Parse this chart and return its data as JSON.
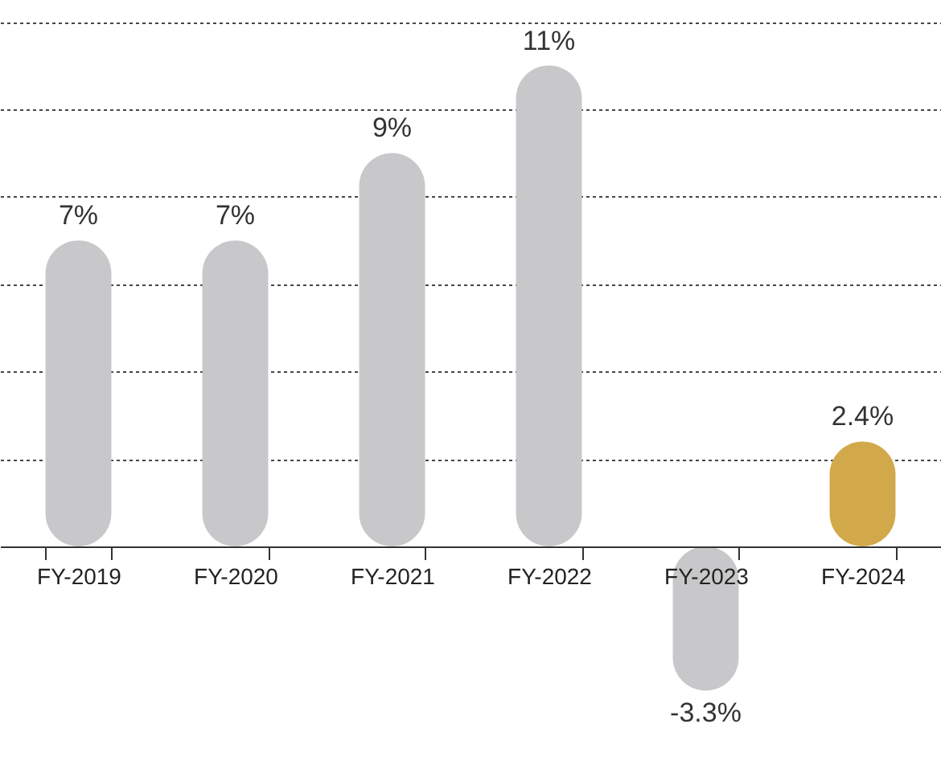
{
  "chart_data": {
    "type": "bar",
    "categories": [
      "FY-2019",
      "FY-2020",
      "FY-2021",
      "FY-2022",
      "FY-2023",
      "FY-2024"
    ],
    "values": [
      7,
      7,
      9,
      11,
      -3.3,
      2.4
    ],
    "colors": [
      "#c8c8ca",
      "#c8c8ca",
      "#c8c8ca",
      "#c8c8ca",
      "#c8c8ca",
      "#d2a94a"
    ],
    "value_labels": [
      "7%",
      "7%",
      "9%",
      "11%",
      "-3.3%",
      "2.4%"
    ],
    "ylim": [
      -5,
      12.5
    ],
    "yticks": [
      {
        "value": 2,
        "label": null
      },
      {
        "value": 4,
        "label": null
      },
      {
        "value": 6,
        "label": null
      },
      {
        "value": 8,
        "label": null
      },
      {
        "value": 10,
        "label": null
      },
      {
        "value": 12,
        "label": null
      }
    ],
    "grid": "y",
    "tick_labels": "x"
  }
}
